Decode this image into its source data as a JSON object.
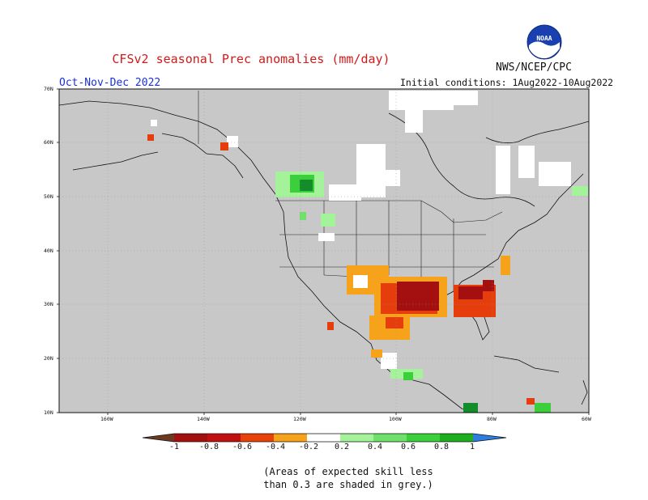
{
  "title": "CFSv2 seasonal Prec anomalies (mm/day)",
  "org_label": "NWS/NCEP/CPC",
  "logo_text": "NOAA",
  "period": "Oct-Nov-Dec 2022",
  "initial_conditions": "Initial conditions: 1Aug2022-10Aug2022",
  "lat_labels": [
    "70N",
    "60N",
    "50N",
    "40N",
    "30N",
    "20N",
    "10N"
  ],
  "lon_labels": [
    "160W",
    "140W",
    "120W",
    "100W",
    "80W",
    "60W"
  ],
  "colorbar": {
    "labels": [
      "-1",
      "-0.8",
      "-0.6",
      "-0.4",
      "-0.2",
      "0.2",
      "0.4",
      "0.6",
      "0.8",
      "1"
    ],
    "colors": [
      "#6b3a1f",
      "#a40f0f",
      "#c01010",
      "#e03a0a",
      "#f06a12",
      "#f7a21b",
      "#ffffff",
      "#a4f29a",
      "#6fe06a",
      "#3ccf3c",
      "#1fae1f",
      "#138c2a",
      "#2e7de0"
    ]
  },
  "map_colors": {
    "ocean": "#c8c8c8",
    "land_skill": "#c8c8c8",
    "dry_strong": "#a40f0f",
    "dry": "#e53e0c",
    "dry_light": "#f7a21b",
    "wet_light": "#a4f29a",
    "wet": "#3ccf3c",
    "wet_strong": "#138c2a"
  },
  "footnote_line1": "(Areas of expected skill less",
  "footnote_line2": "than 0.3 are shaded in grey.)"
}
